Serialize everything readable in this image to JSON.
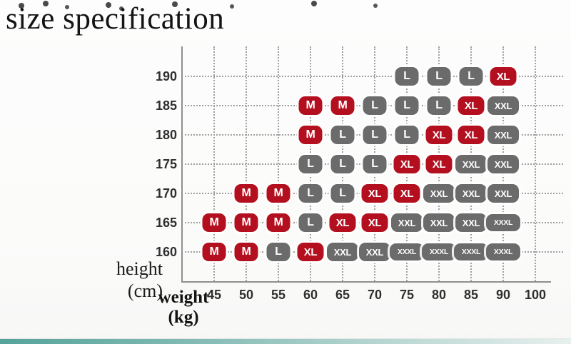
{
  "title": "size specification",
  "colors": {
    "badge_red": "#b30f1e",
    "badge_gray": "#6b6b6b",
    "grid": "#a0a0a0",
    "axis": "#8f8f8f",
    "tick_text": "#2f2f2f",
    "footer_teal": "#55a39b"
  },
  "chart_data": {
    "type": "heatmap",
    "title": "size specification",
    "x_axis": {
      "title": "weight",
      "unit": "(kg)",
      "ticks": [
        "45",
        "50",
        "55",
        "60",
        "65",
        "70",
        "75",
        "80",
        "85",
        "90",
        "100"
      ]
    },
    "y_axis": {
      "title": "height",
      "unit": "(cm)",
      "ticks": [
        "190",
        "185",
        "180",
        "175",
        "170",
        "165",
        "160"
      ]
    },
    "size_colors": {
      "M": "red",
      "L": "gray",
      "XL": "red",
      "XXL": "gray",
      "XXXL": "gray"
    },
    "rows": [
      {
        "height": "190",
        "cells": [
          {
            "weight": "75",
            "size": "L"
          },
          {
            "weight": "80",
            "size": "L"
          },
          {
            "weight": "85",
            "size": "L"
          },
          {
            "weight": "90",
            "size": "XL"
          }
        ]
      },
      {
        "height": "185",
        "cells": [
          {
            "weight": "60",
            "size": "M"
          },
          {
            "weight": "65",
            "size": "M"
          },
          {
            "weight": "70",
            "size": "L"
          },
          {
            "weight": "75",
            "size": "L"
          },
          {
            "weight": "80",
            "size": "L"
          },
          {
            "weight": "85",
            "size": "XL"
          },
          {
            "weight": "90",
            "size": "XXL"
          }
        ]
      },
      {
        "height": "180",
        "cells": [
          {
            "weight": "60",
            "size": "M"
          },
          {
            "weight": "65",
            "size": "L"
          },
          {
            "weight": "70",
            "size": "L"
          },
          {
            "weight": "75",
            "size": "L"
          },
          {
            "weight": "80",
            "size": "XL"
          },
          {
            "weight": "85",
            "size": "XL"
          },
          {
            "weight": "90",
            "size": "XXL"
          }
        ]
      },
      {
        "height": "175",
        "cells": [
          {
            "weight": "60",
            "size": "L"
          },
          {
            "weight": "65",
            "size": "L"
          },
          {
            "weight": "70",
            "size": "L"
          },
          {
            "weight": "75",
            "size": "XL"
          },
          {
            "weight": "80",
            "size": "XL"
          },
          {
            "weight": "85",
            "size": "XXL"
          },
          {
            "weight": "90",
            "size": "XXL"
          }
        ]
      },
      {
        "height": "170",
        "cells": [
          {
            "weight": "50",
            "size": "M"
          },
          {
            "weight": "55",
            "size": "M"
          },
          {
            "weight": "60",
            "size": "L"
          },
          {
            "weight": "65",
            "size": "L"
          },
          {
            "weight": "70",
            "size": "XL"
          },
          {
            "weight": "75",
            "size": "XL"
          },
          {
            "weight": "80",
            "size": "XXL"
          },
          {
            "weight": "85",
            "size": "XXL"
          },
          {
            "weight": "90",
            "size": "XXL"
          }
        ]
      },
      {
        "height": "165",
        "cells": [
          {
            "weight": "45",
            "size": "M"
          },
          {
            "weight": "50",
            "size": "M"
          },
          {
            "weight": "55",
            "size": "M"
          },
          {
            "weight": "60",
            "size": "L"
          },
          {
            "weight": "65",
            "size": "XL"
          },
          {
            "weight": "70",
            "size": "XL"
          },
          {
            "weight": "75",
            "size": "XXL"
          },
          {
            "weight": "80",
            "size": "XXL"
          },
          {
            "weight": "85",
            "size": "XXL"
          },
          {
            "weight": "90",
            "size": "XXXL"
          }
        ]
      },
      {
        "height": "160",
        "cells": [
          {
            "weight": "45",
            "size": "M"
          },
          {
            "weight": "50",
            "size": "M"
          },
          {
            "weight": "55",
            "size": "L"
          },
          {
            "weight": "60",
            "size": "XL"
          },
          {
            "weight": "65",
            "size": "XXL"
          },
          {
            "weight": "70",
            "size": "XXL"
          },
          {
            "weight": "75",
            "size": "XXXL"
          },
          {
            "weight": "80",
            "size": "XXXL"
          },
          {
            "weight": "85",
            "size": "XXXL"
          },
          {
            "weight": "90",
            "size": "XXXL"
          }
        ]
      }
    ]
  }
}
